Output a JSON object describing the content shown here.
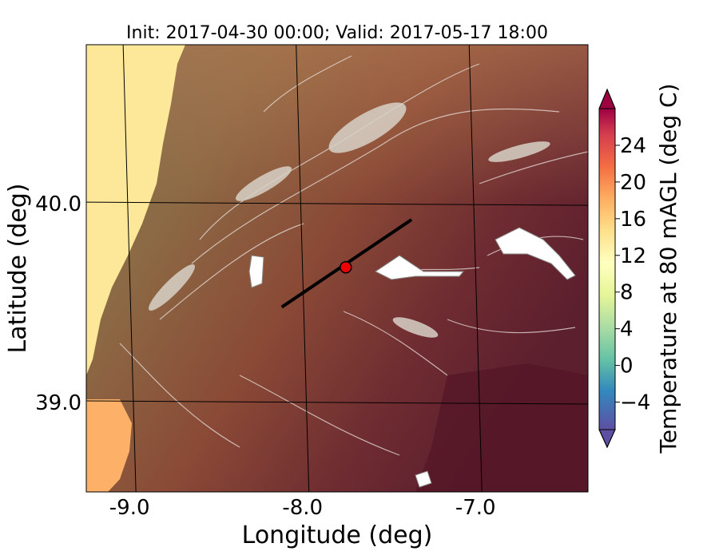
{
  "title": "Init: 2017-04-30 00:00; Valid: 2017-05-17 18:00",
  "xlabel": "Longitude (deg)",
  "ylabel": "Latitude (deg)",
  "colorbar": {
    "label": "Temperature at 80 mAGL (deg C)",
    "ticks": [
      "−4",
      "0",
      "4",
      "8",
      "12",
      "16",
      "20",
      "24"
    ],
    "tick_values": [
      -4,
      0,
      4,
      8,
      12,
      16,
      20,
      24
    ],
    "range": [
      -7,
      28
    ],
    "extend": "both",
    "colormap": "Spectral_r"
  },
  "chart_data": {
    "type": "heatmap",
    "title": "Init: 2017-04-30 00:00; Valid: 2017-05-17 18:00",
    "xlabel": "Longitude (deg)",
    "ylabel": "Latitude (deg)",
    "xlim": [
      -9.25,
      -6.35
    ],
    "ylim": [
      38.55,
      40.8
    ],
    "x_ticks": [
      "-9.0",
      "-8.0",
      "-7.0"
    ],
    "x_tick_values": [
      -9.0,
      -8.0,
      -7.0
    ],
    "y_ticks": [
      "40.0",
      "39.0"
    ],
    "y_tick_values": [
      40.0,
      39.0
    ],
    "grid": true,
    "cross_section_line": {
      "lon": [
        -8.12,
        -7.37
      ],
      "lat": [
        39.48,
        39.92
      ]
    },
    "marker": {
      "lon": -7.75,
      "lat": 39.68,
      "color": "#ee0000"
    },
    "colors": {
      "ocean": "#fde89a",
      "coast_warm": "#fdb067",
      "terrain_cool": "#857a52",
      "terrain_mid": "#9a5c3c",
      "terrain_warm": "#5a1a2c"
    }
  }
}
